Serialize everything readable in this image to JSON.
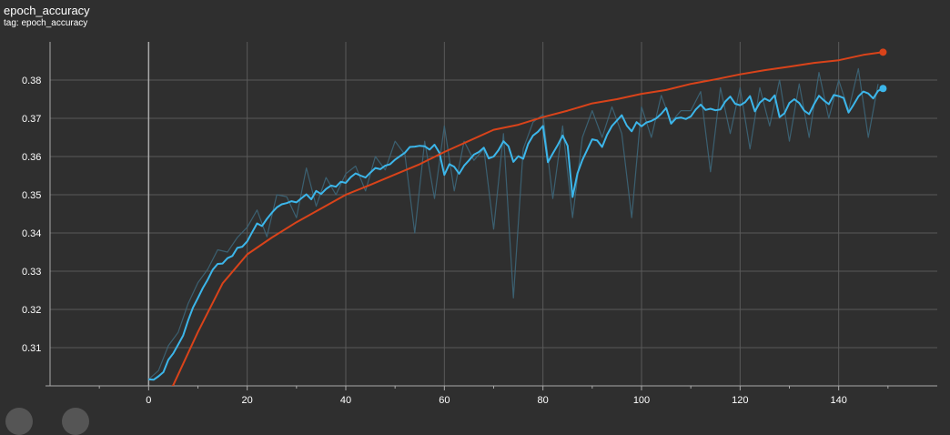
{
  "card": {
    "title": "epoch_accuracy",
    "tag": "tag: epoch_accuracy"
  },
  "colors": {
    "background": "#2f2f2f",
    "grid": "#5a5a5a",
    "axis": "#aaaaaa",
    "series_train": "#d9431a",
    "series_val": "#3cb6ea",
    "series_val_raw": "#3d6679"
  },
  "chart_data": {
    "type": "line",
    "title": "",
    "xlabel": "",
    "ylabel": "",
    "xlim": [
      -20,
      160
    ],
    "ylim": [
      0.3,
      0.39
    ],
    "xticks": [
      0,
      20,
      40,
      60,
      80,
      100,
      120,
      140
    ],
    "yticks": [
      0.31,
      0.32,
      0.33,
      0.34,
      0.35,
      0.36,
      0.37,
      0.38
    ],
    "ytick_labels": [
      "0.31",
      "0.32",
      "0.33",
      "0.34",
      "0.35",
      "0.36",
      "0.37",
      "0.38"
    ],
    "grid": true,
    "series": [
      {
        "id": "train_smoothed",
        "color": "#d9431a",
        "points": [
          [
            0,
            0.2926
          ],
          [
            5,
            0.3002
          ],
          [
            10,
            0.3141
          ],
          [
            15,
            0.3268
          ],
          [
            20,
            0.3344
          ],
          [
            25,
            0.3388
          ],
          [
            30,
            0.3428
          ],
          [
            35,
            0.3464
          ],
          [
            40,
            0.35
          ],
          [
            45,
            0.3526
          ],
          [
            50,
            0.3553
          ],
          [
            55,
            0.358
          ],
          [
            60,
            0.3612
          ],
          [
            65,
            0.3641
          ],
          [
            70,
            0.367
          ],
          [
            75,
            0.3683
          ],
          [
            80,
            0.3703
          ],
          [
            85,
            0.372
          ],
          [
            90,
            0.3739
          ],
          [
            95,
            0.375
          ],
          [
            100,
            0.3764
          ],
          [
            105,
            0.3774
          ],
          [
            110,
            0.379
          ],
          [
            115,
            0.3802
          ],
          [
            120,
            0.3815
          ],
          [
            125,
            0.3826
          ],
          [
            130,
            0.3835
          ],
          [
            135,
            0.3845
          ],
          [
            140,
            0.3852
          ],
          [
            145,
            0.3866
          ],
          [
            149,
            0.3873
          ]
        ]
      },
      {
        "id": "val_smoothed",
        "color": "#3cb6ea",
        "points": [
          [
            0,
            0.3017
          ],
          [
            1,
            0.3016
          ],
          [
            2,
            0.3025
          ],
          [
            3,
            0.3036
          ],
          [
            4,
            0.3068
          ],
          [
            5,
            0.3085
          ],
          [
            6,
            0.3108
          ],
          [
            7,
            0.3132
          ],
          [
            8,
            0.3171
          ],
          [
            9,
            0.3205
          ],
          [
            10,
            0.323
          ],
          [
            11,
            0.3256
          ],
          [
            12,
            0.3278
          ],
          [
            13,
            0.3304
          ],
          [
            14,
            0.3319
          ],
          [
            15,
            0.332
          ],
          [
            16,
            0.3334
          ],
          [
            17,
            0.334
          ],
          [
            18,
            0.3361
          ],
          [
            19,
            0.3364
          ],
          [
            20,
            0.3378
          ],
          [
            21,
            0.3402
          ],
          [
            22,
            0.3425
          ],
          [
            23,
            0.3418
          ],
          [
            24,
            0.3437
          ],
          [
            25,
            0.3453
          ],
          [
            26,
            0.3467
          ],
          [
            27,
            0.3475
          ],
          [
            28,
            0.3478
          ],
          [
            29,
            0.3483
          ],
          [
            30,
            0.348
          ],
          [
            31,
            0.3491
          ],
          [
            32,
            0.3501
          ],
          [
            33,
            0.3488
          ],
          [
            34,
            0.351
          ],
          [
            35,
            0.3502
          ],
          [
            36,
            0.3515
          ],
          [
            37,
            0.3524
          ],
          [
            38,
            0.3521
          ],
          [
            39,
            0.3534
          ],
          [
            40,
            0.3531
          ],
          [
            41,
            0.3546
          ],
          [
            42,
            0.3556
          ],
          [
            43,
            0.355
          ],
          [
            44,
            0.3545
          ],
          [
            45,
            0.3558
          ],
          [
            46,
            0.357
          ],
          [
            47,
            0.3567
          ],
          [
            48,
            0.3576
          ],
          [
            49,
            0.358
          ],
          [
            50,
            0.3592
          ],
          [
            51,
            0.3601
          ],
          [
            52,
            0.361
          ],
          [
            53,
            0.3625
          ],
          [
            54,
            0.3626
          ],
          [
            55,
            0.3628
          ],
          [
            56,
            0.3627
          ],
          [
            57,
            0.3618
          ],
          [
            58,
            0.3631
          ],
          [
            59,
            0.361
          ],
          [
            60,
            0.3552
          ],
          [
            61,
            0.358
          ],
          [
            62,
            0.3573
          ],
          [
            63,
            0.3555
          ],
          [
            64,
            0.3576
          ],
          [
            65,
            0.359
          ],
          [
            66,
            0.3605
          ],
          [
            67,
            0.3612
          ],
          [
            68,
            0.3623
          ],
          [
            69,
            0.3595
          ],
          [
            70,
            0.36
          ],
          [
            71,
            0.3617
          ],
          [
            72,
            0.364
          ],
          [
            73,
            0.3627
          ],
          [
            74,
            0.3586
          ],
          [
            75,
            0.3601
          ],
          [
            76,
            0.3594
          ],
          [
            77,
            0.3633
          ],
          [
            78,
            0.3655
          ],
          [
            79,
            0.3665
          ],
          [
            80,
            0.368
          ],
          [
            81,
            0.3585
          ],
          [
            82,
            0.3608
          ],
          [
            83,
            0.363
          ],
          [
            84,
            0.3655
          ],
          [
            85,
            0.3628
          ],
          [
            86,
            0.3494
          ],
          [
            87,
            0.3556
          ],
          [
            88,
            0.3591
          ],
          [
            89,
            0.3618
          ],
          [
            90,
            0.3645
          ],
          [
            91,
            0.3642
          ],
          [
            92,
            0.3625
          ],
          [
            93,
            0.3657
          ],
          [
            94,
            0.368
          ],
          [
            95,
            0.3694
          ],
          [
            96,
            0.3708
          ],
          [
            97,
            0.3681
          ],
          [
            98,
            0.3666
          ],
          [
            99,
            0.369
          ],
          [
            100,
            0.3679
          ],
          [
            101,
            0.3689
          ],
          [
            102,
            0.3693
          ],
          [
            103,
            0.37
          ],
          [
            104,
            0.3712
          ],
          [
            105,
            0.3727
          ],
          [
            106,
            0.3686
          ],
          [
            107,
            0.37
          ],
          [
            108,
            0.3702
          ],
          [
            109,
            0.3698
          ],
          [
            110,
            0.3705
          ],
          [
            111,
            0.3723
          ],
          [
            112,
            0.3736
          ],
          [
            113,
            0.3722
          ],
          [
            114,
            0.3725
          ],
          [
            115,
            0.3721
          ],
          [
            116,
            0.3723
          ],
          [
            117,
            0.3744
          ],
          [
            118,
            0.3757
          ],
          [
            119,
            0.3738
          ],
          [
            120,
            0.3734
          ],
          [
            121,
            0.3742
          ],
          [
            122,
            0.3758
          ],
          [
            123,
            0.3718
          ],
          [
            124,
            0.3741
          ],
          [
            125,
            0.3752
          ],
          [
            126,
            0.3745
          ],
          [
            127,
            0.376
          ],
          [
            128,
            0.3703
          ],
          [
            129,
            0.3713
          ],
          [
            130,
            0.374
          ],
          [
            131,
            0.375
          ],
          [
            132,
            0.374
          ],
          [
            133,
            0.372
          ],
          [
            134,
            0.3711
          ],
          [
            135,
            0.3737
          ],
          [
            136,
            0.3759
          ],
          [
            137,
            0.3747
          ],
          [
            138,
            0.3737
          ],
          [
            139,
            0.3761
          ],
          [
            140,
            0.3758
          ],
          [
            141,
            0.3753
          ],
          [
            142,
            0.3715
          ],
          [
            143,
            0.3735
          ],
          [
            144,
            0.3757
          ],
          [
            145,
            0.377
          ],
          [
            146,
            0.3765
          ],
          [
            147,
            0.3752
          ],
          [
            148,
            0.3772
          ],
          [
            149,
            0.3778
          ]
        ]
      },
      {
        "id": "val_raw",
        "color": "#3d6679",
        "points": [
          [
            0,
            0.3017
          ],
          [
            2,
            0.304
          ],
          [
            4,
            0.3105
          ],
          [
            6,
            0.314
          ],
          [
            8,
            0.3215
          ],
          [
            10,
            0.327
          ],
          [
            12,
            0.3305
          ],
          [
            14,
            0.3356
          ],
          [
            16,
            0.335
          ],
          [
            18,
            0.3388
          ],
          [
            20,
            0.3415
          ],
          [
            22,
            0.346
          ],
          [
            24,
            0.339
          ],
          [
            26,
            0.35
          ],
          [
            28,
            0.3495
          ],
          [
            30,
            0.344
          ],
          [
            32,
            0.357
          ],
          [
            34,
            0.347
          ],
          [
            36,
            0.3545
          ],
          [
            38,
            0.35
          ],
          [
            40,
            0.3555
          ],
          [
            42,
            0.3575
          ],
          [
            44,
            0.351
          ],
          [
            46,
            0.36
          ],
          [
            48,
            0.3565
          ],
          [
            50,
            0.364
          ],
          [
            52,
            0.3605
          ],
          [
            54,
            0.34
          ],
          [
            56,
            0.364
          ],
          [
            58,
            0.349
          ],
          [
            60,
            0.368
          ],
          [
            62,
            0.351
          ],
          [
            64,
            0.364
          ],
          [
            66,
            0.359
          ],
          [
            68,
            0.362
          ],
          [
            70,
            0.341
          ],
          [
            72,
            0.366
          ],
          [
            74,
            0.323
          ],
          [
            76,
            0.362
          ],
          [
            78,
            0.369
          ],
          [
            80,
            0.371
          ],
          [
            82,
            0.349
          ],
          [
            84,
            0.368
          ],
          [
            86,
            0.344
          ],
          [
            88,
            0.365
          ],
          [
            90,
            0.372
          ],
          [
            92,
            0.365
          ],
          [
            94,
            0.373
          ],
          [
            96,
            0.366
          ],
          [
            98,
            0.344
          ],
          [
            100,
            0.373
          ],
          [
            102,
            0.365
          ],
          [
            104,
            0.376
          ],
          [
            106,
            0.369
          ],
          [
            108,
            0.372
          ],
          [
            110,
            0.372
          ],
          [
            112,
            0.377
          ],
          [
            114,
            0.356
          ],
          [
            116,
            0.378
          ],
          [
            118,
            0.366
          ],
          [
            120,
            0.378
          ],
          [
            122,
            0.362
          ],
          [
            124,
            0.378
          ],
          [
            126,
            0.368
          ],
          [
            128,
            0.38
          ],
          [
            130,
            0.364
          ],
          [
            132,
            0.379
          ],
          [
            134,
            0.365
          ],
          [
            136,
            0.382
          ],
          [
            138,
            0.37
          ],
          [
            140,
            0.38
          ],
          [
            142,
            0.372
          ],
          [
            144,
            0.383
          ],
          [
            146,
            0.365
          ],
          [
            148,
            0.379
          ]
        ]
      }
    ]
  }
}
